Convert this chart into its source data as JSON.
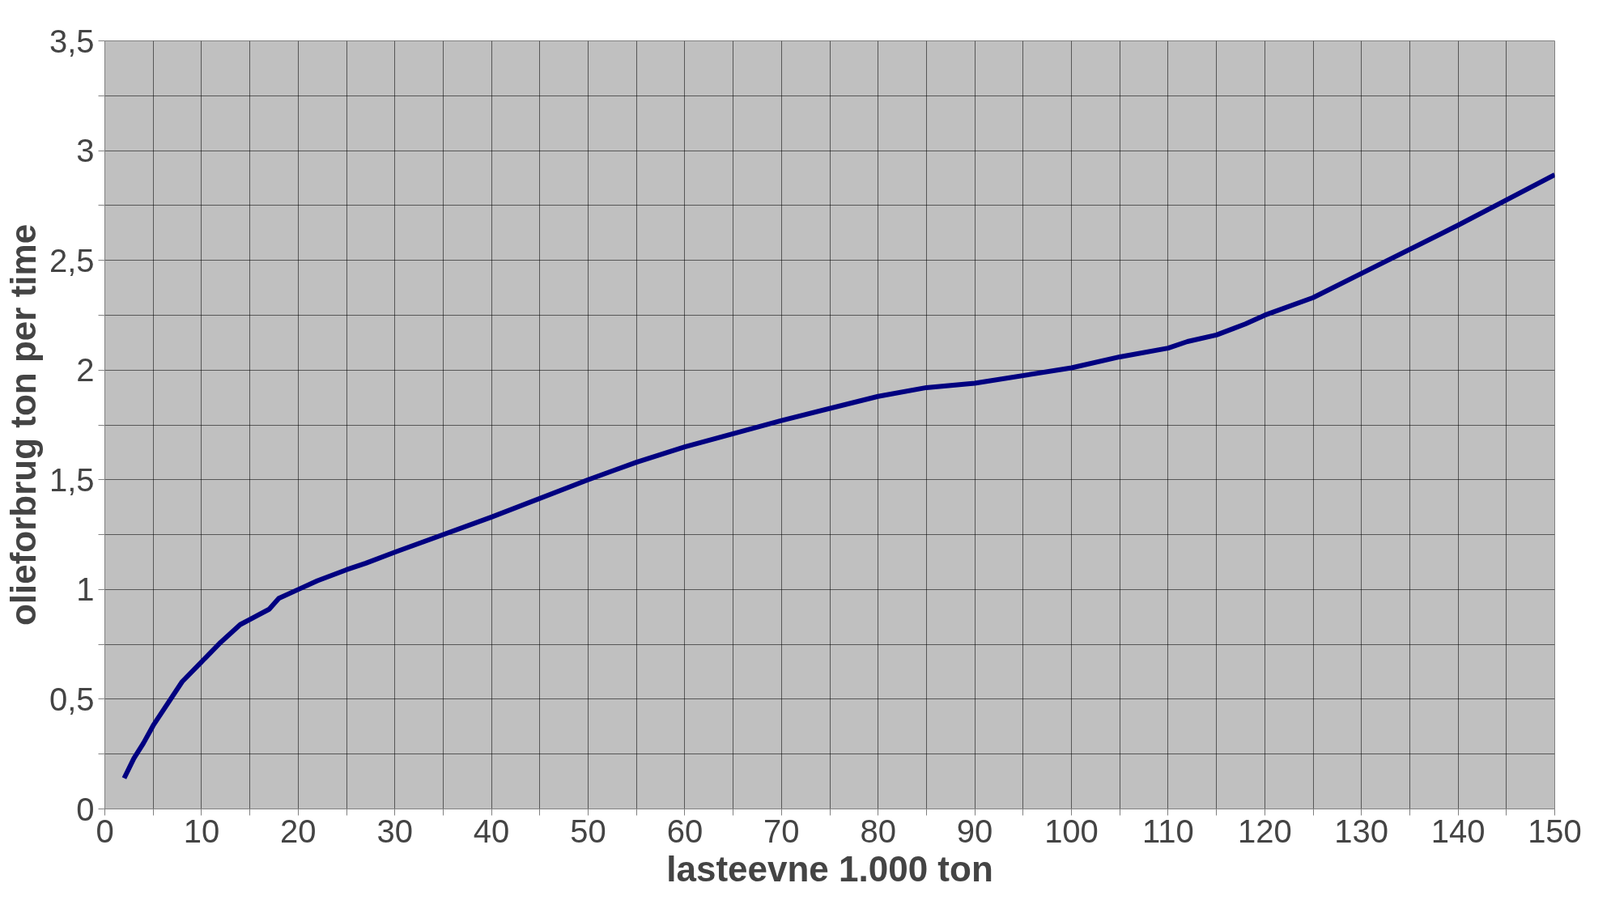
{
  "chart_data": {
    "type": "line",
    "xlabel": "lasteevne 1.000 ton",
    "ylabel": "olieforbrug ton per time",
    "x": [
      2,
      3,
      4,
      5,
      8,
      10,
      12,
      14,
      17,
      18,
      20,
      22,
      25,
      27,
      30,
      40,
      50,
      55,
      60,
      70,
      80,
      85,
      90,
      100,
      105,
      110,
      112,
      115,
      118,
      120,
      125,
      130,
      140,
      150
    ],
    "series": [
      {
        "color": "#000080",
        "values": [
          0.14,
          0.23,
          0.3,
          0.38,
          0.58,
          0.67,
          0.76,
          0.84,
          0.91,
          0.96,
          1.0,
          1.04,
          1.09,
          1.12,
          1.17,
          1.33,
          1.5,
          1.58,
          1.65,
          1.77,
          1.88,
          1.92,
          1.94,
          2.01,
          2.06,
          2.1,
          2.13,
          2.16,
          2.21,
          2.25,
          2.33,
          2.44,
          2.66,
          2.89
        ]
      }
    ],
    "xlim": [
      0,
      150
    ],
    "ylim": [
      0,
      3.5
    ],
    "xticks": [
      0,
      {
        "value": 5,
        "label": null
      },
      10,
      {
        "value": 15,
        "label": null
      },
      20,
      {
        "value": 25,
        "label": null
      },
      30,
      {
        "value": 35,
        "label": null
      },
      40,
      {
        "value": 45,
        "label": null
      },
      50,
      {
        "value": 55,
        "label": null
      },
      60,
      {
        "value": 65,
        "label": null
      },
      70,
      {
        "value": 75,
        "label": null
      },
      80,
      {
        "value": 85,
        "label": null
      },
      90,
      {
        "value": 95,
        "label": null
      },
      100,
      {
        "value": 105,
        "label": null
      },
      110,
      {
        "value": 115,
        "label": null
      },
      120,
      {
        "value": 125,
        "label": null
      },
      130,
      {
        "value": 135,
        "label": null
      },
      140,
      {
        "value": 145,
        "label": null
      },
      150
    ],
    "yticks": [
      0,
      {
        "value": 0.25,
        "label": null
      },
      {
        "value": 0.5,
        "label": "0,5"
      },
      {
        "value": 0.75,
        "label": null
      },
      1,
      {
        "value": 1.25,
        "label": null
      },
      {
        "value": 1.5,
        "label": "1,5"
      },
      {
        "value": 1.75,
        "label": null
      },
      2,
      {
        "value": 2.25,
        "label": null
      },
      {
        "value": 2.5,
        "label": "2,5"
      },
      {
        "value": 2.75,
        "label": null
      },
      3,
      {
        "value": 3.25,
        "label": null
      },
      {
        "value": 3.5,
        "label": "3,5"
      }
    ],
    "grid": true,
    "line_style": "solid"
  }
}
